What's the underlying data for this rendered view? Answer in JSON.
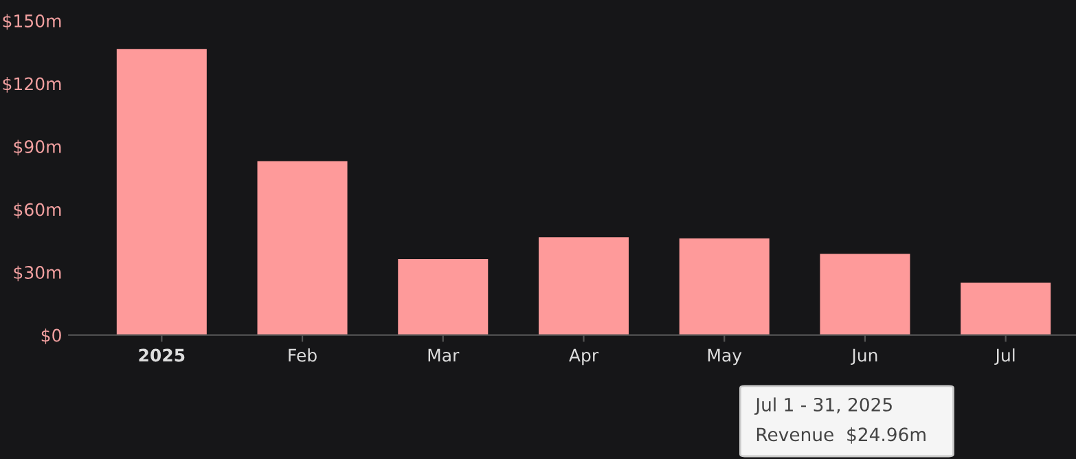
{
  "chart_data": {
    "type": "bar",
    "categories": [
      "2025",
      "Feb",
      "Mar",
      "Apr",
      "May",
      "Jun",
      "Jul"
    ],
    "series": [
      {
        "color": "#fe9a9a",
        "values": [
          136.5,
          83,
          36.3,
          46.7,
          46.1,
          38.7,
          25
        ]
      }
    ],
    "ylim": [
      0,
      150
    ],
    "yticks": [
      {
        "value": 0,
        "label": "$0"
      },
      {
        "value": 30,
        "label": "$30m"
      },
      {
        "value": 60,
        "label": "$60m"
      },
      {
        "value": 90,
        "label": "$90m"
      },
      {
        "value": 120,
        "label": "$120m"
      },
      {
        "value": 150,
        "label": "$150m"
      }
    ],
    "annotations": [
      "Jul 1 - 31, 2025",
      "Revenue  $24.96m"
    ],
    "grid": false
  }
}
